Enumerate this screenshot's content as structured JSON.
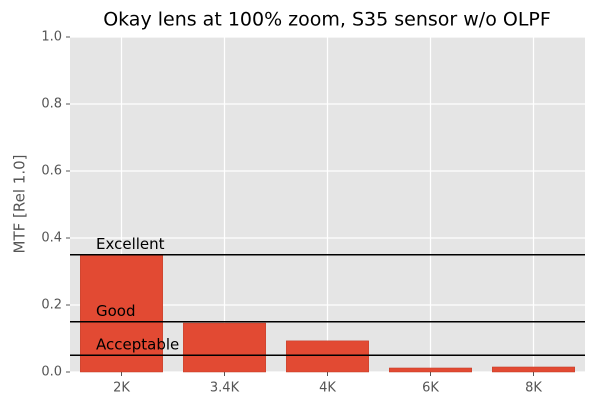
{
  "chart_data": {
    "type": "bar",
    "title": "Okay lens at 100% zoom, S35 sensor w/o OLPF",
    "y_label": "MTF [Rel 1.0]",
    "categories": [
      "2K",
      "3.4K",
      "4K",
      "6K",
      "8K"
    ],
    "values": [
      0.35,
      0.146,
      0.093,
      0.012,
      0.015
    ],
    "color": "#e24a33",
    "ylim": [
      0,
      1
    ],
    "yticks": [
      {
        "value": 0,
        "label": "0.0"
      },
      0.2,
      0.4,
      0.6,
      0.8,
      {
        "value": 1,
        "label": "1.0"
      }
    ],
    "grid": true,
    "thresholds": [
      {
        "label": "Excellent",
        "value": 0.35
      },
      {
        "label": "Good",
        "value": 0.15
      },
      {
        "label": "Acceptable",
        "value": 0.05
      }
    ]
  }
}
